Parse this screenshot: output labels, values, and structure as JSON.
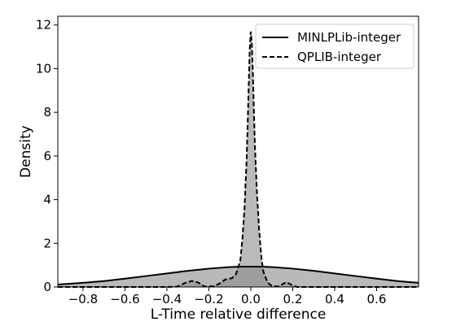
{
  "chart_data": {
    "type": "area",
    "xlabel": "L-Time relative difference",
    "ylabel": "Density",
    "xlim": [
      -0.92,
      0.8
    ],
    "ylim": [
      0,
      12.4
    ],
    "x_ticks": [
      -0.8,
      -0.6,
      -0.4,
      -0.2,
      0.0,
      0.2,
      0.4,
      0.6
    ],
    "x_tick_labels": [
      "−0.8",
      "−0.6",
      "−0.4",
      "−0.2",
      "0.0",
      "0.2",
      "0.4",
      "0.6"
    ],
    "y_ticks": [
      0,
      2,
      4,
      6,
      8,
      10,
      12
    ],
    "y_tick_labels": [
      "0",
      "2",
      "4",
      "6",
      "8",
      "10",
      "12"
    ],
    "grid": false,
    "legend": {
      "position": "top-right"
    },
    "series": [
      {
        "name": "MINLPLib-integer",
        "line_style": "solid",
        "points": [
          [
            -0.92,
            0.11
          ],
          [
            -0.8,
            0.19
          ],
          [
            -0.7,
            0.27
          ],
          [
            -0.6,
            0.38
          ],
          [
            -0.5,
            0.5
          ],
          [
            -0.4,
            0.62
          ],
          [
            -0.3,
            0.74
          ],
          [
            -0.2,
            0.84
          ],
          [
            -0.1,
            0.91
          ],
          [
            -0.05,
            0.93
          ],
          [
            0.0,
            0.93
          ],
          [
            0.05,
            0.93
          ],
          [
            0.1,
            0.91
          ],
          [
            0.2,
            0.84
          ],
          [
            0.3,
            0.74
          ],
          [
            0.4,
            0.62
          ],
          [
            0.5,
            0.5
          ],
          [
            0.6,
            0.38
          ],
          [
            0.7,
            0.27
          ],
          [
            0.8,
            0.19
          ]
        ]
      },
      {
        "name": "QPLIB-integer",
        "line_style": "dashed",
        "points": [
          [
            -0.92,
            0.0
          ],
          [
            -0.4,
            0.0
          ],
          [
            -0.35,
            0.02
          ],
          [
            -0.31,
            0.2
          ],
          [
            -0.28,
            0.28
          ],
          [
            -0.25,
            0.2
          ],
          [
            -0.22,
            0.02
          ],
          [
            -0.18,
            0.03
          ],
          [
            -0.15,
            0.15
          ],
          [
            -0.12,
            0.35
          ],
          [
            -0.09,
            0.4
          ],
          [
            -0.07,
            0.6
          ],
          [
            -0.05,
            1.2
          ],
          [
            -0.04,
            2.2
          ],
          [
            -0.03,
            3.6
          ],
          [
            -0.02,
            5.8
          ],
          [
            -0.015,
            7.4
          ],
          [
            -0.01,
            9.2
          ],
          [
            -0.005,
            10.9
          ],
          [
            0.0,
            11.7
          ],
          [
            0.005,
            11.2
          ],
          [
            0.01,
            9.8
          ],
          [
            0.015,
            8.0
          ],
          [
            0.02,
            6.4
          ],
          [
            0.03,
            4.2
          ],
          [
            0.04,
            2.6
          ],
          [
            0.05,
            1.4
          ],
          [
            0.06,
            0.7
          ],
          [
            0.08,
            0.2
          ],
          [
            0.1,
            0.05
          ],
          [
            0.13,
            0.02
          ],
          [
            0.15,
            0.12
          ],
          [
            0.17,
            0.22
          ],
          [
            0.19,
            0.12
          ],
          [
            0.22,
            0.0
          ],
          [
            0.8,
            0.0
          ]
        ]
      }
    ]
  }
}
